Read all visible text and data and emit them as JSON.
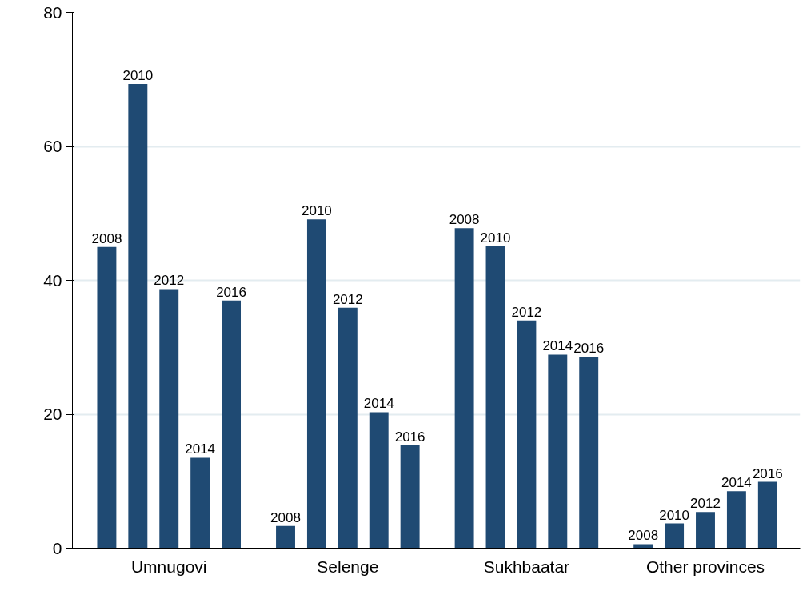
{
  "chart_data": {
    "type": "bar",
    "categories": [
      "Umnugovi",
      "Selenge",
      "Sukhbaatar",
      "Other provinces"
    ],
    "series": [
      {
        "name": "2008",
        "color": "#1f4a73",
        "values": [
          45.0,
          3.3,
          47.8,
          0.6
        ]
      },
      {
        "name": "2010",
        "color": "#1f4a73",
        "values": [
          69.3,
          49.1,
          45.1,
          3.7
        ]
      },
      {
        "name": "2012",
        "color": "#1f4a73",
        "values": [
          38.7,
          35.9,
          34.0,
          5.4
        ]
      },
      {
        "name": "2014",
        "color": "#1f4a73",
        "values": [
          13.5,
          20.3,
          28.9,
          8.5
        ]
      },
      {
        "name": "2016",
        "color": "#1f4a73",
        "values": [
          37.0,
          15.4,
          28.6,
          9.9
        ]
      }
    ],
    "ylim": [
      0,
      80
    ],
    "yticks": [
      0,
      20,
      40,
      60,
      80
    ],
    "grid": "y"
  }
}
